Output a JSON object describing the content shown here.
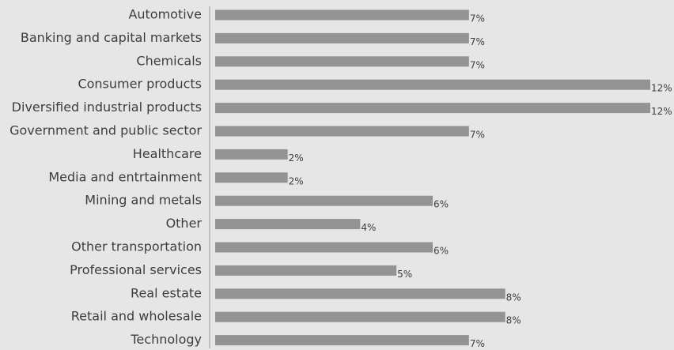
{
  "chart_data": {
    "type": "bar",
    "orientation": "horizontal",
    "categories": [
      "Automotive",
      "Banking and capital markets",
      "Chemicals",
      "Consumer products",
      "Diversified industrial products",
      "Government and public sector",
      "Healthcare",
      "Media and entrtainment",
      "Mining and metals",
      "Other",
      "Other transportation",
      "Professional services",
      "Real estate",
      "Retail and wholesale",
      "Technology"
    ],
    "values": [
      7,
      7,
      7,
      12,
      12,
      7,
      2,
      2,
      6,
      4,
      6,
      5,
      8,
      8,
      7
    ],
    "value_labels": [
      "7%",
      "7%",
      "7%",
      "12%",
      "12%",
      "7%",
      "2%",
      "2%",
      "6%",
      "4%",
      "6%",
      "5%",
      "8%",
      "8%",
      "7%"
    ],
    "unit": "%",
    "xlim": [
      0,
      12
    ],
    "grid": false,
    "legend": "none",
    "colors": {
      "background": "#e6e6e7",
      "bar": "#939393",
      "axis": "#999999",
      "text": "#3d3d3d"
    }
  }
}
